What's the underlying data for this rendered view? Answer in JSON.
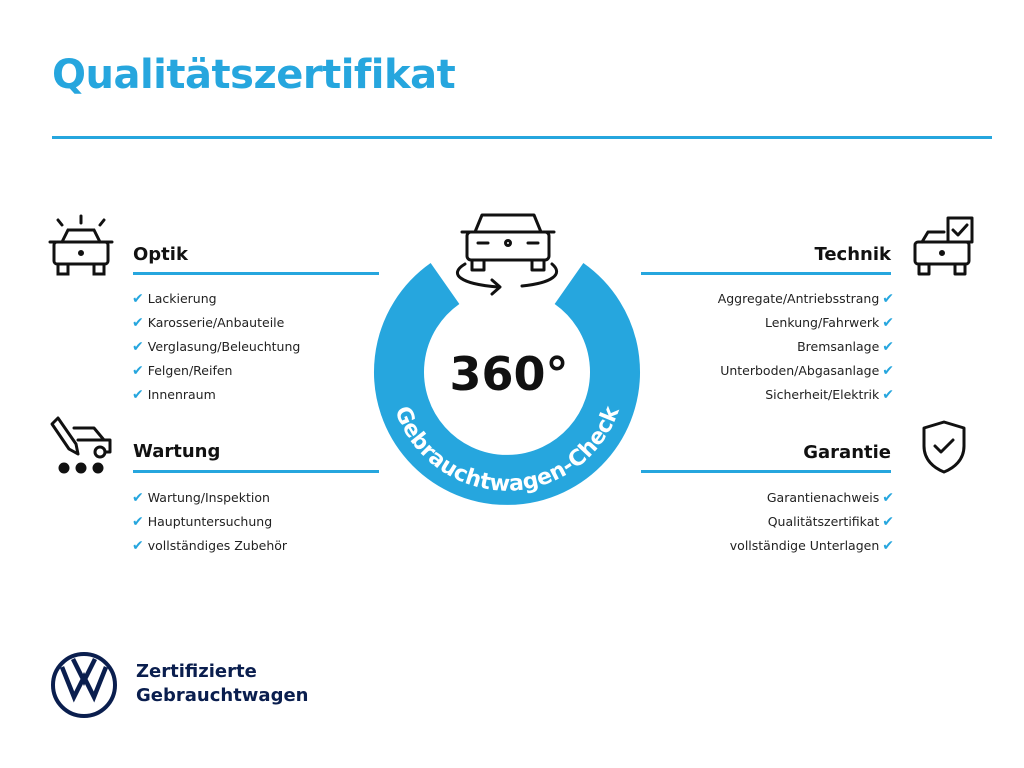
{
  "title": "Qualitätszertifikat",
  "colors": {
    "accent": "#26a6de",
    "brand_navy": "#0a1e4e"
  },
  "badge": {
    "value": "360°",
    "arc_text": "Gebrauchtwagen-Check",
    "icon": "car-rotate-icon"
  },
  "sections": {
    "optik": {
      "heading": "Optik",
      "icon": "car-shine-icon",
      "items": [
        "Lackierung",
        "Karosserie/Anbauteile",
        "Verglasung/Beleuchtung",
        "Felgen/Reifen",
        "Innenraum"
      ]
    },
    "wartung": {
      "heading": "Wartung",
      "icon": "car-service-icon",
      "items": [
        "Wartung/Inspektion",
        "Hauptuntersuchung",
        "vollständiges Zubehör"
      ]
    },
    "technik": {
      "heading": "Technik",
      "icon": "car-checklist-icon",
      "items": [
        "Aggregate/Antriebsstrang",
        "Lenkung/Fahrwerk",
        "Bremsanlage",
        "Unterboden/Abgasanlage",
        "Sicherheit/Elektrik"
      ]
    },
    "garantie": {
      "heading": "Garantie",
      "icon": "shield-check-icon",
      "items": [
        "Garantienachweis",
        "Qualitätszertifikat",
        "vollständige Unterlagen"
      ]
    }
  },
  "check_glyph": "✔",
  "footer": {
    "line1": "Zertifizierte",
    "line2": "Gebrauchtwagen",
    "logo": "vw-logo"
  }
}
